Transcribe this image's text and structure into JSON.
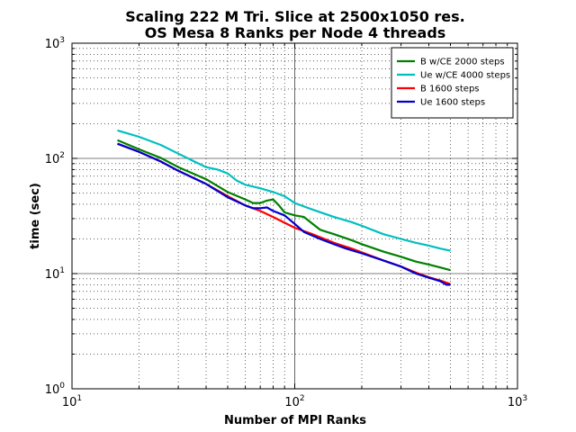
{
  "chart_data": {
    "type": "line",
    "title": [
      "Scaling 222 M Tri. Slice at 2500x1050 res.",
      "OS Mesa 8 Ranks per Node 4 threads"
    ],
    "xlabel": "Number of MPI Ranks",
    "ylabel": "time (sec)",
    "xscale": "log",
    "yscale": "log",
    "xlim": [
      10,
      1000
    ],
    "ylim": [
      1,
      1000
    ],
    "x_tick_labels": [
      {
        "value": 10,
        "base": "10",
        "exp": "1"
      },
      {
        "value": 100,
        "base": "10",
        "exp": "2"
      },
      {
        "value": 1000,
        "base": "10",
        "exp": "3"
      }
    ],
    "y_tick_labels": [
      {
        "value": 1,
        "base": "10",
        "exp": "0"
      },
      {
        "value": 10,
        "base": "10",
        "exp": "1"
      },
      {
        "value": 100,
        "base": "10",
        "exp": "2"
      },
      {
        "value": 1000,
        "base": "10",
        "exp": "3"
      }
    ],
    "grid": true,
    "legend_position": "top-right",
    "series": [
      {
        "name": "B w/CE 2000 steps",
        "color": "#008000",
        "points": [
          [
            16,
            144
          ],
          [
            20,
            120
          ],
          [
            25,
            101
          ],
          [
            30,
            84
          ],
          [
            40,
            66
          ],
          [
            50,
            51
          ],
          [
            60,
            44
          ],
          [
            65,
            41
          ],
          [
            70,
            41
          ],
          [
            75,
            43
          ],
          [
            80,
            44
          ],
          [
            85,
            39
          ],
          [
            90,
            34
          ],
          [
            100,
            32
          ],
          [
            110,
            31
          ],
          [
            130,
            24
          ],
          [
            150,
            22
          ],
          [
            180,
            19.5
          ],
          [
            200,
            18
          ],
          [
            250,
            15.5
          ],
          [
            300,
            14
          ],
          [
            350,
            12.7
          ],
          [
            400,
            12
          ],
          [
            450,
            11.3
          ],
          [
            500,
            10.7
          ]
        ]
      },
      {
        "name": "Ue w/CE 4000 steps",
        "color": "#00bfbf",
        "points": [
          [
            16,
            175
          ],
          [
            20,
            154
          ],
          [
            25,
            131
          ],
          [
            30,
            110
          ],
          [
            35,
            95
          ],
          [
            40,
            84
          ],
          [
            45,
            80
          ],
          [
            50,
            74
          ],
          [
            55,
            64
          ],
          [
            60,
            59
          ],
          [
            70,
            55
          ],
          [
            80,
            51
          ],
          [
            90,
            47
          ],
          [
            100,
            41
          ],
          [
            120,
            36
          ],
          [
            150,
            31
          ],
          [
            180,
            28
          ],
          [
            200,
            26
          ],
          [
            250,
            22
          ],
          [
            300,
            20
          ],
          [
            350,
            18.5
          ],
          [
            400,
            17.5
          ],
          [
            450,
            16.5
          ],
          [
            500,
            15.8
          ]
        ]
      },
      {
        "name": "B 1600 steps",
        "color": "#ff0000",
        "points": [
          [
            16,
            134
          ],
          [
            20,
            114
          ],
          [
            25,
            94
          ],
          [
            30,
            78
          ],
          [
            40,
            60
          ],
          [
            50,
            47
          ],
          [
            60,
            39
          ],
          [
            70,
            35
          ],
          [
            80,
            31
          ],
          [
            100,
            25
          ],
          [
            120,
            22
          ],
          [
            150,
            18.5
          ],
          [
            180,
            16.5
          ],
          [
            200,
            15.3
          ],
          [
            250,
            13
          ],
          [
            300,
            11.5
          ],
          [
            350,
            10.2
          ],
          [
            400,
            9.3
          ],
          [
            450,
            8.7
          ],
          [
            500,
            8.1
          ]
        ]
      },
      {
        "name": "Ue 1600 steps",
        "color": "#0000cc",
        "points": [
          [
            16,
            134
          ],
          [
            20,
            114
          ],
          [
            25,
            94
          ],
          [
            30,
            78
          ],
          [
            40,
            60
          ],
          [
            50,
            46
          ],
          [
            60,
            39
          ],
          [
            65,
            37
          ],
          [
            70,
            37
          ],
          [
            75,
            37.5
          ],
          [
            80,
            35
          ],
          [
            90,
            32
          ],
          [
            100,
            27
          ],
          [
            110,
            23
          ],
          [
            130,
            20
          ],
          [
            150,
            18
          ],
          [
            170,
            16.5
          ],
          [
            200,
            15
          ],
          [
            250,
            13
          ],
          [
            300,
            11.5
          ],
          [
            350,
            10
          ],
          [
            400,
            9.2
          ],
          [
            450,
            8.6
          ],
          [
            480,
            8
          ],
          [
            500,
            8
          ]
        ]
      }
    ]
  }
}
